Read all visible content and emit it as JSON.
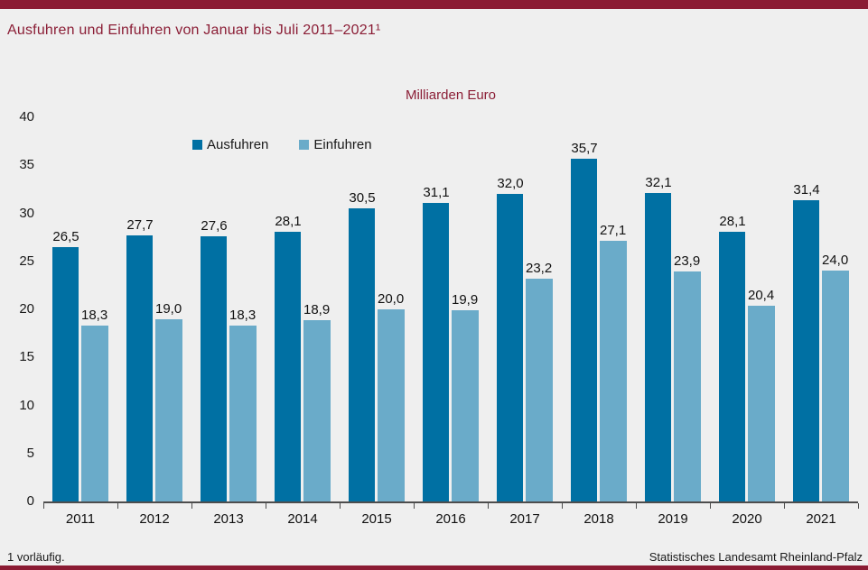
{
  "header": {
    "title": "Ausfuhren und Einfuhren von Januar bis Juli 2011–2021¹"
  },
  "chart_data": {
    "type": "bar",
    "title": "Ausfuhren und Einfuhren von Januar bis Juli 2011–2021¹",
    "unit_label": "Milliarden Euro",
    "categories": [
      "2011",
      "2012",
      "2013",
      "2014",
      "2015",
      "2016",
      "2017",
      "2018",
      "2019",
      "2020",
      "2021"
    ],
    "series": [
      {
        "name": "Ausfuhren",
        "color": "#0070A3",
        "values": [
          26.5,
          27.7,
          27.6,
          28.1,
          30.5,
          31.1,
          32.0,
          35.7,
          32.1,
          28.1,
          31.4
        ],
        "labels": [
          "26,5",
          "27,7",
          "27,6",
          "28,1",
          "30,5",
          "31,1",
          "32,0",
          "35,7",
          "32,1",
          "28,1",
          "31,4"
        ]
      },
      {
        "name": "Einfuhren",
        "color": "#6AABC9",
        "values": [
          18.3,
          19.0,
          18.3,
          18.9,
          20.0,
          19.9,
          23.2,
          27.1,
          23.9,
          20.4,
          24.0
        ],
        "labels": [
          "18,3",
          "19,0",
          "18,3",
          "18,9",
          "20,0",
          "19,9",
          "23,2",
          "27,1",
          "23,9",
          "20,4",
          "24,0"
        ]
      }
    ],
    "ylim": [
      0,
      40
    ],
    "yticks": [
      0,
      5,
      10,
      15,
      20,
      25,
      30,
      35,
      40
    ],
    "grid": false,
    "legend_position": "top-inside-left",
    "value_labels": true
  },
  "footer": {
    "footnote": "1 vorläufig.",
    "source": "Statistisches Landesamt  Rheinland-Pfalz"
  },
  "colors": {
    "accent": "#8B1B33",
    "title_text": "#8B1E36",
    "bar_dark": "#0070A3",
    "bar_light": "#6AABC9",
    "background": "#EFEFEF",
    "axis": "#4D4D4D"
  }
}
